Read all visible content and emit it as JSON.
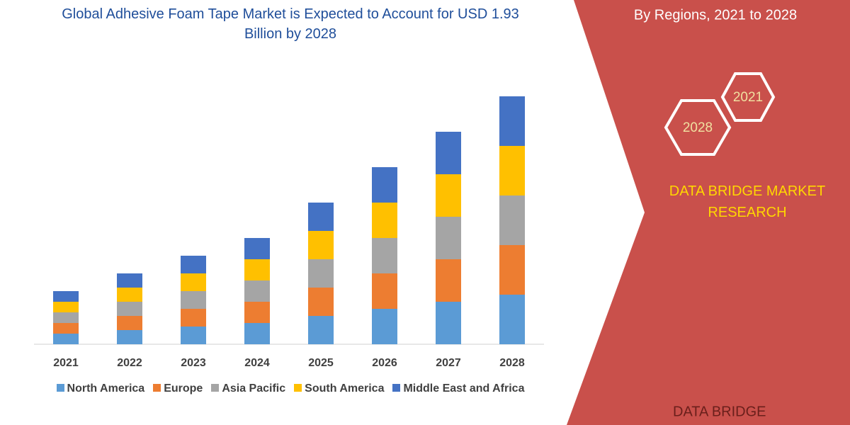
{
  "chart_data": {
    "type": "stacked_bar",
    "title": "Global Adhesive Foam Tape Market is Expected to Account for USD 1.93 Billion by 2028",
    "categories": [
      "2021",
      "2022",
      "2023",
      "2024",
      "2025",
      "2026",
      "2027",
      "2028"
    ],
    "series": [
      {
        "name": "North America",
        "color": "#5b9bd5",
        "values": [
          15,
          20,
          25,
          30,
          40,
          50,
          60,
          70
        ]
      },
      {
        "name": "Europe",
        "color": "#ed7d31",
        "values": [
          15,
          20,
          25,
          30,
          40,
          50,
          60,
          70
        ]
      },
      {
        "name": "Asia Pacific",
        "color": "#a5a5a5",
        "values": [
          15,
          20,
          25,
          30,
          40,
          50,
          60,
          70
        ]
      },
      {
        "name": "South America",
        "color": "#ffc000",
        "values": [
          15,
          20,
          25,
          30,
          40,
          50,
          60,
          70
        ]
      },
      {
        "name": "Middle East and Africa",
        "color": "#4472c4",
        "values": [
          15,
          20,
          25,
          30,
          40,
          50,
          60,
          70
        ]
      }
    ],
    "ylim": [
      0,
      360
    ],
    "grid": false,
    "legend": "bottom"
  },
  "panel": {
    "subtitle": "By Regions, 2021 to 2028",
    "hex_labels": [
      "2021",
      "2028"
    ],
    "brand": "DATA BRIDGE MARKET RESEARCH",
    "logo": "DATA BRIDGE"
  }
}
